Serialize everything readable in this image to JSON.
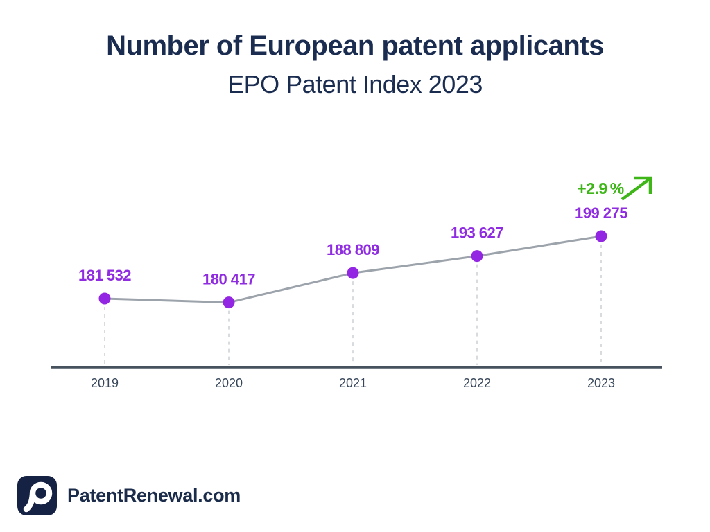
{
  "header": {
    "title": "Number of European patent applicants",
    "subtitle": "EPO Patent Index 2023"
  },
  "chart_data": {
    "type": "line",
    "title": "Number of European patent applicants",
    "subtitle": "EPO Patent Index 2023",
    "categories": [
      "2019",
      "2020",
      "2021",
      "2022",
      "2023"
    ],
    "values": [
      181532,
      180417,
      188809,
      193627,
      199275
    ],
    "point_labels": [
      "181 532",
      "180 417",
      "188 809",
      "193 627",
      "199 275"
    ],
    "growth_label": "+2.9 %",
    "xlabel": "",
    "ylabel": "",
    "ylim": [
      178000,
      202000
    ],
    "grid": false,
    "legend": false,
    "colors": {
      "point": "#9326e3",
      "value_label": "#8f2be0",
      "line": "#9ca3ab",
      "axis": "#47525f",
      "growth": "#3eb618",
      "tick_label": "#37465a",
      "drop_line": "#d9dcdf"
    }
  },
  "footer": {
    "brand": "PatentRenewal.com"
  }
}
